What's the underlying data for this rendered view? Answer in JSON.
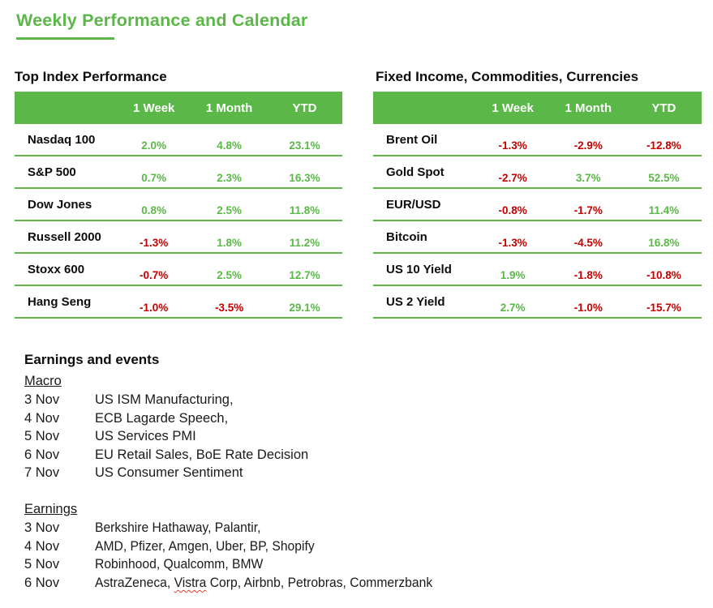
{
  "theme": {
    "green": "#5bb848",
    "red": "#c40000",
    "text": "#1a1a1a",
    "header_text": "#ffffff"
  },
  "title": "Weekly Performance and Calendar",
  "tables": [
    {
      "heading": "Top Index Performance",
      "columns": [
        "1 Week",
        "1 Month",
        "YTD"
      ],
      "rows": [
        {
          "name": "Nasdaq 100",
          "values": [
            "2.0%",
            "4.8%",
            "23.1%"
          ]
        },
        {
          "name": "S&P 500",
          "values": [
            "0.7%",
            "2.3%",
            "16.3%"
          ]
        },
        {
          "name": "Dow Jones",
          "values": [
            "0.8%",
            "2.5%",
            "11.8%"
          ]
        },
        {
          "name": "Russell 2000",
          "values": [
            "-1.3%",
            "1.8%",
            "11.2%"
          ]
        },
        {
          "name": "Stoxx 600",
          "values": [
            "-0.7%",
            "2.5%",
            "12.7%"
          ]
        },
        {
          "name": "Hang Seng",
          "values": [
            "-1.0%",
            "-3.5%",
            "29.1%"
          ]
        }
      ]
    },
    {
      "heading": "Fixed Income, Commodities, Currencies",
      "columns": [
        "1 Week",
        "1 Month",
        "YTD"
      ],
      "rows": [
        {
          "name": "Brent Oil",
          "values": [
            "-1.3%",
            "-2.9%",
            "-12.8%"
          ]
        },
        {
          "name": "Gold Spot",
          "values": [
            "-2.7%",
            "3.7%",
            "52.5%"
          ]
        },
        {
          "name": "EUR/USD",
          "values": [
            "-0.8%",
            "-1.7%",
            "11.4%"
          ]
        },
        {
          "name": "Bitcoin",
          "values": [
            "-1.3%",
            "-4.5%",
            "16.8%"
          ]
        },
        {
          "name": "US 10 Yield",
          "values": [
            "1.9%",
            "-1.8%",
            "-10.8%"
          ]
        },
        {
          "name": "US 2 Yield",
          "values": [
            "2.7%",
            "-1.0%",
            "-15.7%"
          ]
        }
      ]
    }
  ],
  "events": {
    "heading": "Earnings and events",
    "macro": {
      "label": "Macro",
      "items": [
        {
          "date": "3 Nov",
          "text": "US ISM Manufacturing,"
        },
        {
          "date": "4 Nov",
          "text": "ECB Lagarde Speech,"
        },
        {
          "date": "5 Nov",
          "text": "US Services PMI"
        },
        {
          "date": "6 Nov",
          "text": "EU Retail Sales, BoE Rate Decision"
        },
        {
          "date": "7 Nov",
          "text": "US Consumer Sentiment"
        }
      ]
    },
    "earnings": {
      "label": "Earnings",
      "items": [
        {
          "date": "3 Nov",
          "pre": "Berkshire Hathaway, Palantir,",
          "wavy": "",
          "post": ""
        },
        {
          "date": "4 Nov",
          "pre": "AMD, Pfizer, Amgen, Uber, BP, Shopify",
          "wavy": "",
          "post": ""
        },
        {
          "date": "5 Nov",
          "pre": "Robinhood, Qualcomm, BMW",
          "wavy": "",
          "post": ""
        },
        {
          "date": "6 Nov",
          "pre": "AstraZeneca, ",
          "wavy": "Vistra",
          "post": " Corp, Airbnb, Petrobras, Commerzbank"
        }
      ]
    }
  }
}
